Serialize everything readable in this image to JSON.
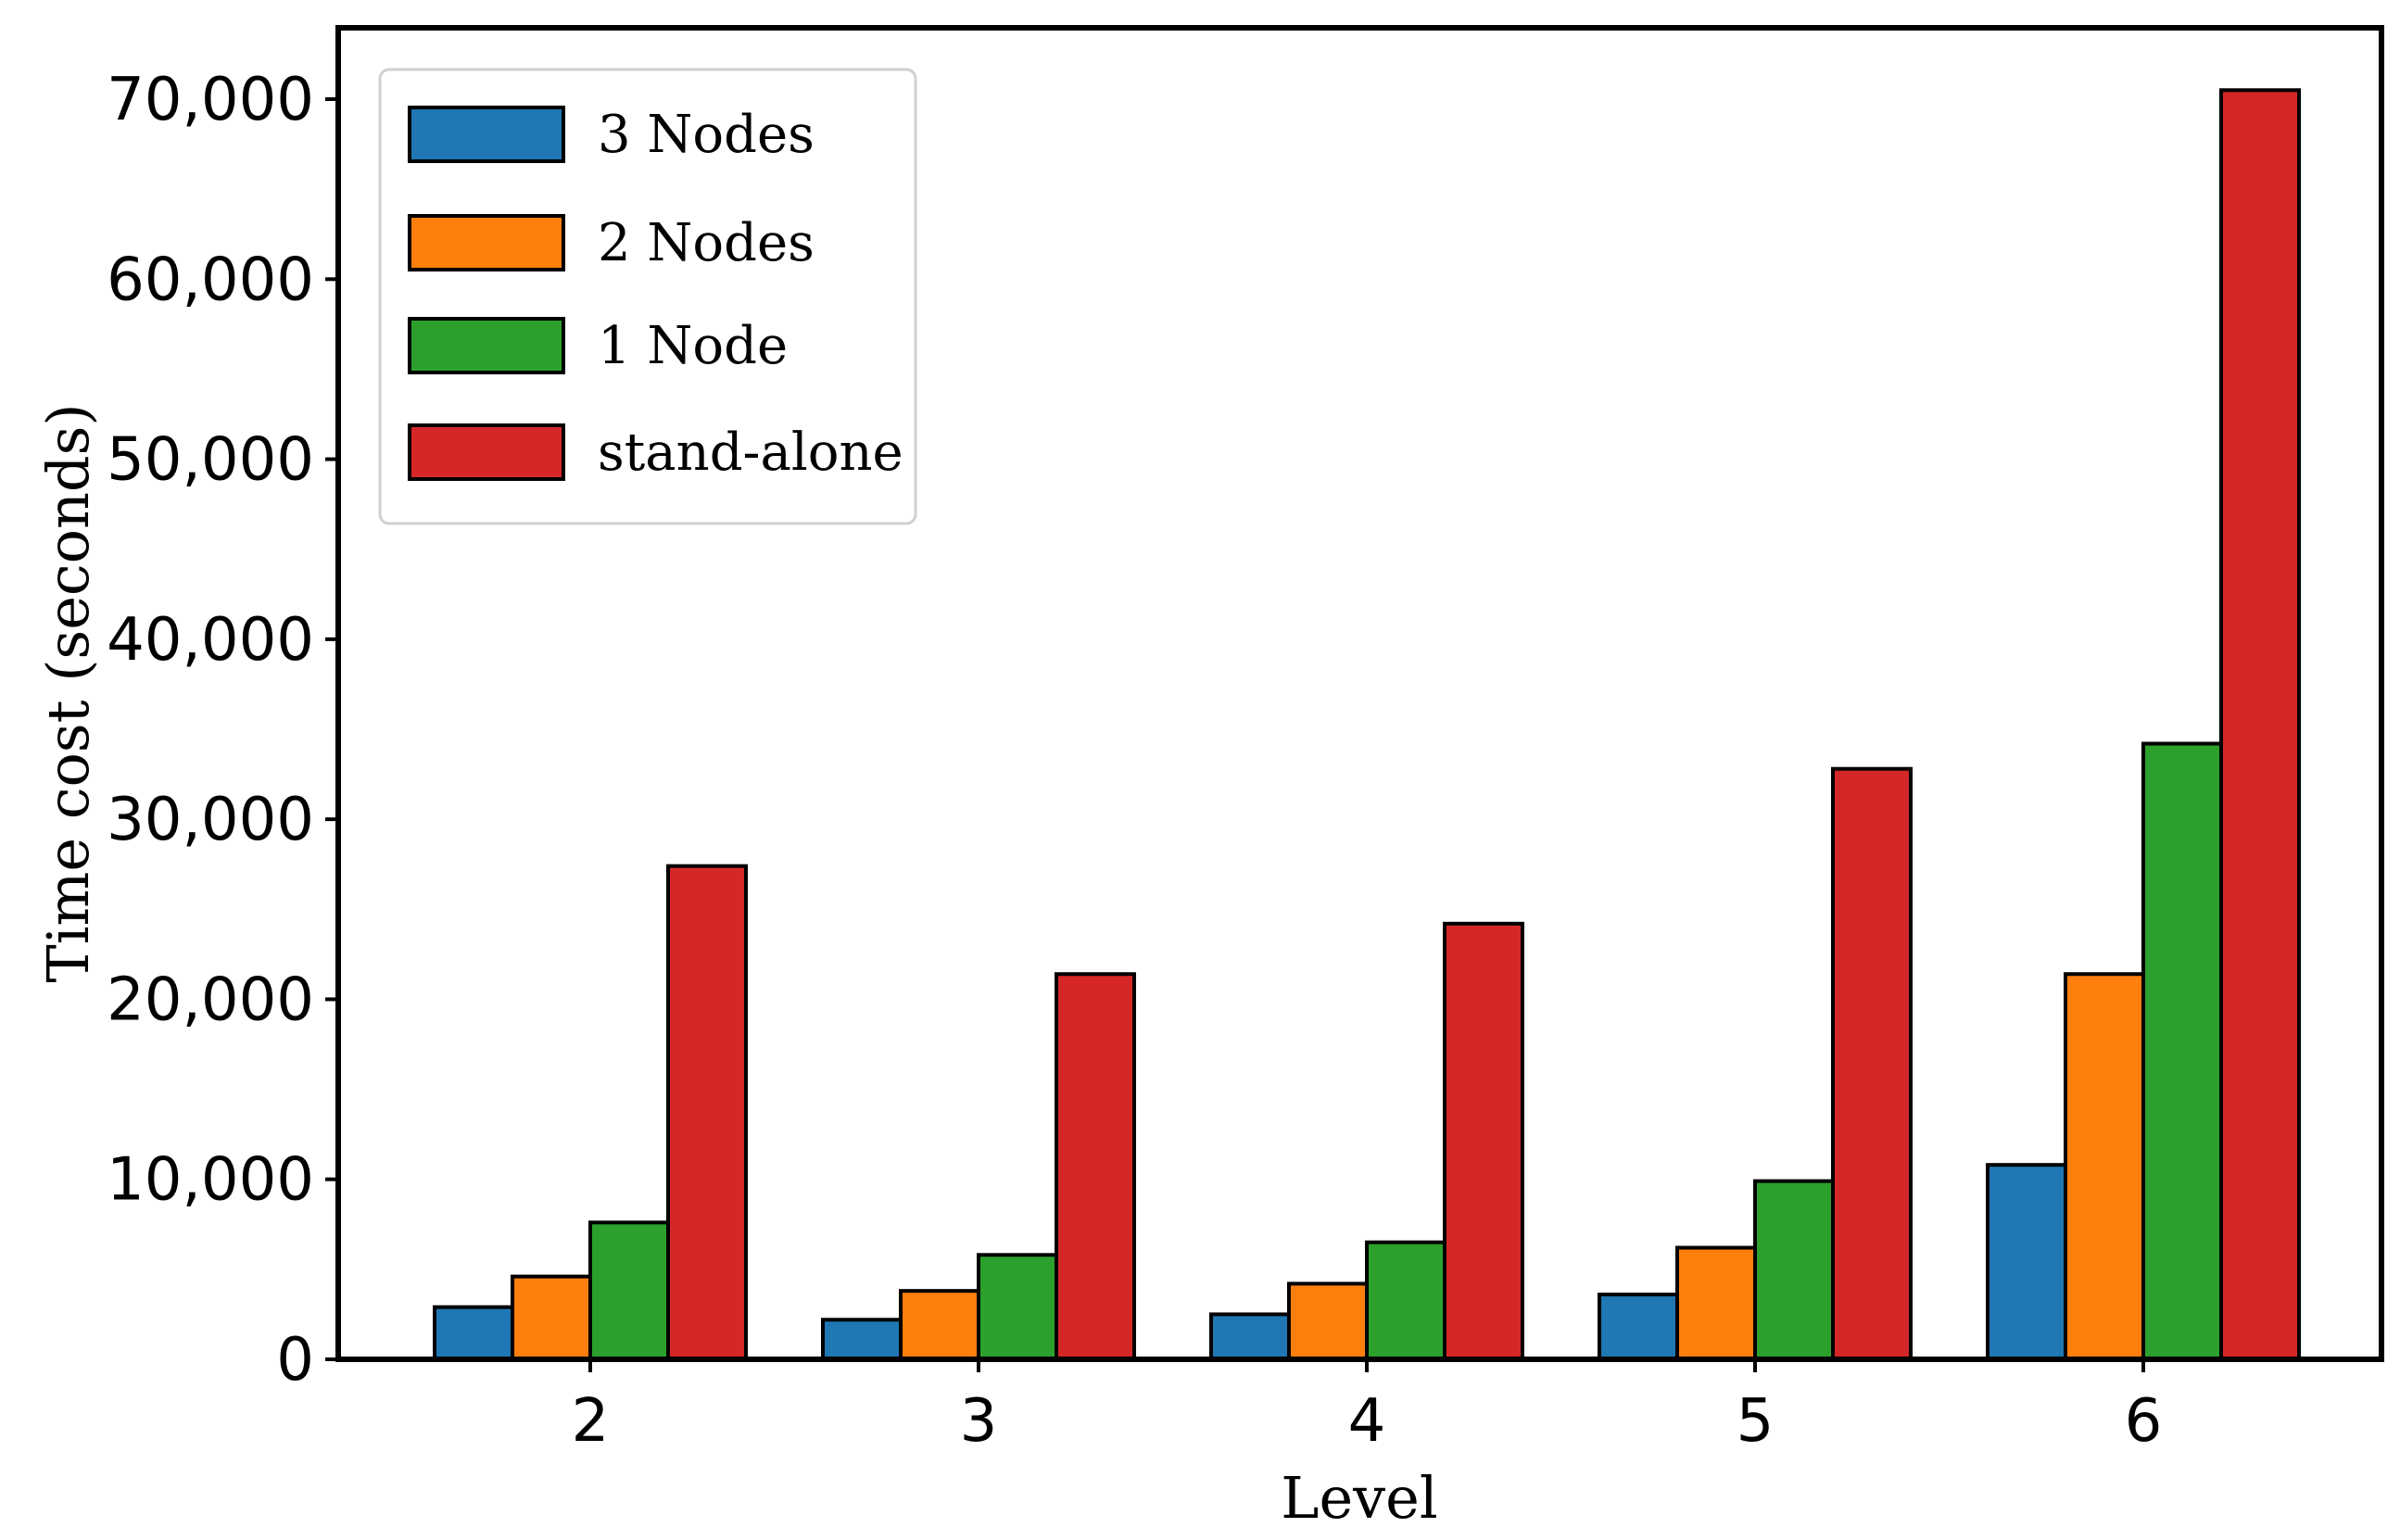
{
  "chart_data": {
    "type": "bar",
    "title": "",
    "xlabel": "Level",
    "ylabel": "Time cost (seconds)",
    "categories": [
      "2",
      "3",
      "4",
      "5",
      "6"
    ],
    "ylim": [
      0,
      73000
    ],
    "yticks": [
      0,
      10000,
      20000,
      30000,
      40000,
      50000,
      60000,
      70000
    ],
    "ytick_labels": [
      "0",
      "10,000",
      "20,000",
      "30,000",
      "40,000",
      "50,000",
      "60,000",
      "70,000"
    ],
    "grid": false,
    "legend": {
      "position": "top-left"
    },
    "series": [
      {
        "name": "3 Nodes",
        "color": "#1f77b4",
        "values": [
          2900,
          2200,
          2500,
          3600,
          10800
        ]
      },
      {
        "name": "2 Nodes",
        "color": "#ff7f0e",
        "values": [
          4600,
          3800,
          4200,
          6200,
          21400
        ]
      },
      {
        "name": "1 Node",
        "color": "#2ca02c",
        "values": [
          7600,
          5800,
          6500,
          9900,
          34200
        ]
      },
      {
        "name": "stand-alone",
        "color": "#d62728",
        "values": [
          27400,
          21400,
          24200,
          32800,
          70500
        ]
      }
    ]
  }
}
